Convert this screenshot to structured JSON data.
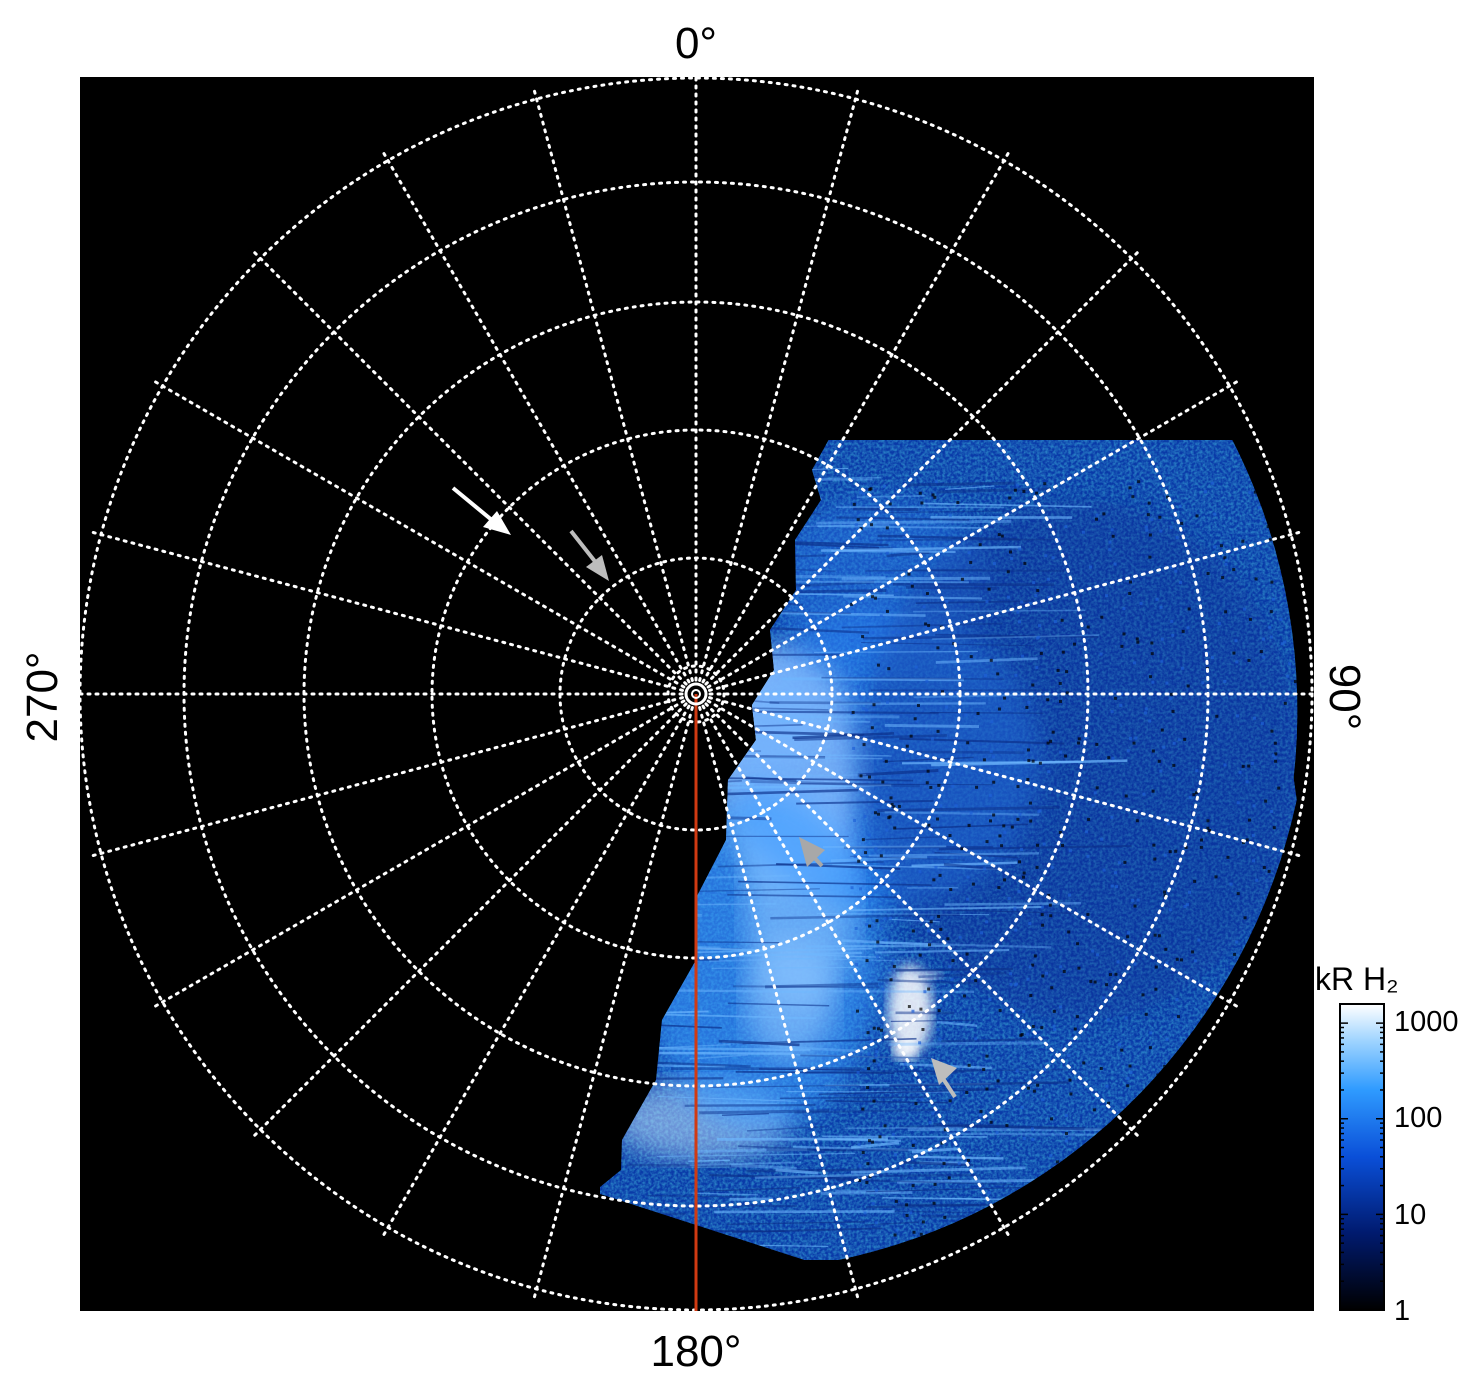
{
  "figure": {
    "labels": {
      "top": "0°",
      "right": "90°",
      "bottom": "180°",
      "left": "270°"
    },
    "colorbar": {
      "title": "kR H₂",
      "scale": "log",
      "ticks": [
        "1000",
        "100",
        "10",
        "1"
      ]
    },
    "colors": {
      "background": "#000000",
      "grid": "#ffffff",
      "meridian_line": "#d03a12",
      "aurora_low": "#0a2a8a",
      "aurora_mid": "#2f8cff",
      "aurora_high": "#ffffff",
      "arrow_white": "#ffffff",
      "arrow_grey": "#b3b3b3"
    },
    "icons": [
      "white-arrow-icon",
      "grey-arrow-icon",
      "pole-marker-icon"
    ]
  }
}
